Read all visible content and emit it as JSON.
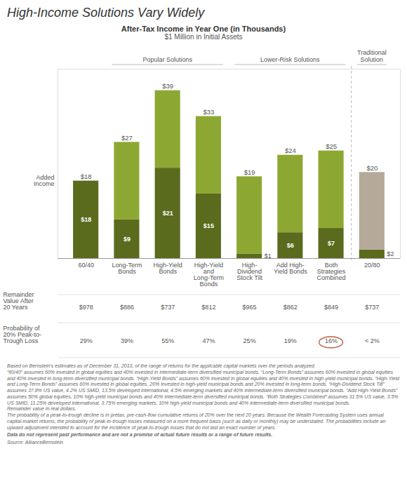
{
  "chart_data": {
    "type": "bar",
    "title": "High-Income Solutions Vary Widely",
    "subtitle": [
      "After-Tax Income in Year One (in Thousands)",
      "$1 Million in Initial Assets"
    ],
    "stacked": true,
    "data_labels": true,
    "tick_labels": "x",
    "categories": [
      "60/40",
      "Long-Term\nBonds",
      "High-Yield\nBonds",
      "High-Yield\nand\nLong-Term\nBonds",
      "High-\nDividend\nStock Tilt",
      "Add High-\nYield Bonds",
      "Both\nStrategies\nCombined",
      "20/80"
    ],
    "series": [
      {
        "color": "#5a6b1e",
        "values": [
          18,
          9,
          21,
          15,
          1,
          6,
          7,
          2
        ],
        "value_labels": [
          "$18",
          "$9",
          "$21",
          "$15",
          "$1",
          "$6",
          "$7",
          "$2"
        ]
      },
      {
        "name": "Added\nIncome",
        "colors": [
          "#8da832",
          "#8da832",
          "#8da832",
          "#8da832",
          "#8da832",
          "#8da832",
          "#8da832",
          "#b5a99a"
        ],
        "values": [
          0,
          18,
          18,
          18,
          18,
          18,
          18,
          18
        ]
      }
    ],
    "total_labels": [
      "$18",
      "$27",
      "$39",
      "$33",
      "$19",
      "$24",
      "$25",
      "$20"
    ],
    "ylim": [
      0,
      44
    ],
    "groups": [
      {
        "label": "Popular Solutions",
        "categories": [
          "Long-Term\nBonds",
          "High-Yield\nBonds",
          "High-Yield\nand\nLong-Term\nBonds"
        ]
      },
      {
        "label": "Lower-Risk Solutions",
        "categories": [
          "High-\nDividend\nStock Tilt",
          "Add High-\nYield Bonds",
          "Both\nStrategies\nCombined"
        ]
      },
      {
        "label": "Traditional\nSolution",
        "categories": [
          "20/80"
        ]
      }
    ],
    "table": [
      {
        "label": "Remainder\nValue After\n20 Years",
        "values": [
          "$978",
          "$886",
          "$737",
          "$812",
          "$965",
          "$862",
          "$849",
          "$737"
        ]
      },
      {
        "label": "Probability of\n20% Peak-to-\nTrough Loss",
        "values": [
          "29%",
          "39%",
          "55%",
          "47%",
          "25%",
          "19%",
          "16%",
          "< 2%"
        ],
        "circled": "Both\nStrategies\nCombined",
        "circle_color": "#b85c38"
      }
    ],
    "footnote": "Based on Bernstein’s estimates as of December 31, 2013, of the range of returns for the applicable capital markets over the periods analyzed.\n“60/40” assumes 60% invested in global equities and 40% invested in intermediate-term diversified municipal bonds. “Long-Term Bonds” assumes 60% invested in global equities and 40% invested in long-term diversified municipal bonds. “High-Yield Bonds” assumes 60% invested in global equities and 40% invested in high-yield municipal bonds. “High-Yield and Long-Term Bonds” assumes 60% invested in global equities, 20% invested in high-yield municipal bonds and 20% invested in long-term bonds. “High-Dividend Stock Tilt” assumes 37.8% US value, 4.2% US SMID, 13.5% developed international, 4.5% emerging markets and 40% intermediate-term diversified municipal bonds. “Add High-Yield Bonds” assumes 50% global equities, 10% high-yield municipal bonds and 40% intermediate-term diversified municipal bonds. “Both Strategies Combined” assumes 31.5% US value, 3.5% US SMID, 11.25% developed international, 3.75% emerging markets, 10% high-yield municipal bonds and 40% intermediate-term diversified municipal bonds.\nRemainder value in real dollars.\nThe probability of a peak-to-trough decline is in pretax, pre-cash-flow cumulative returns of 20% over the next 20 years. Because the Wealth Forecasting System uses annual capital-market returns, the probability of peak-to-trough losses measured on a more frequent basis (such as daily or monthly) may be understated. The probabilities include an upward adjustment intended to account for the incidence of peak-to-trough losses that do not last an exact number of years.",
    "footnote_bold": "Data do not represent past performance and are not a promise of actual future results or a range of future results.",
    "source": "Source: AllianceBernstein"
  }
}
